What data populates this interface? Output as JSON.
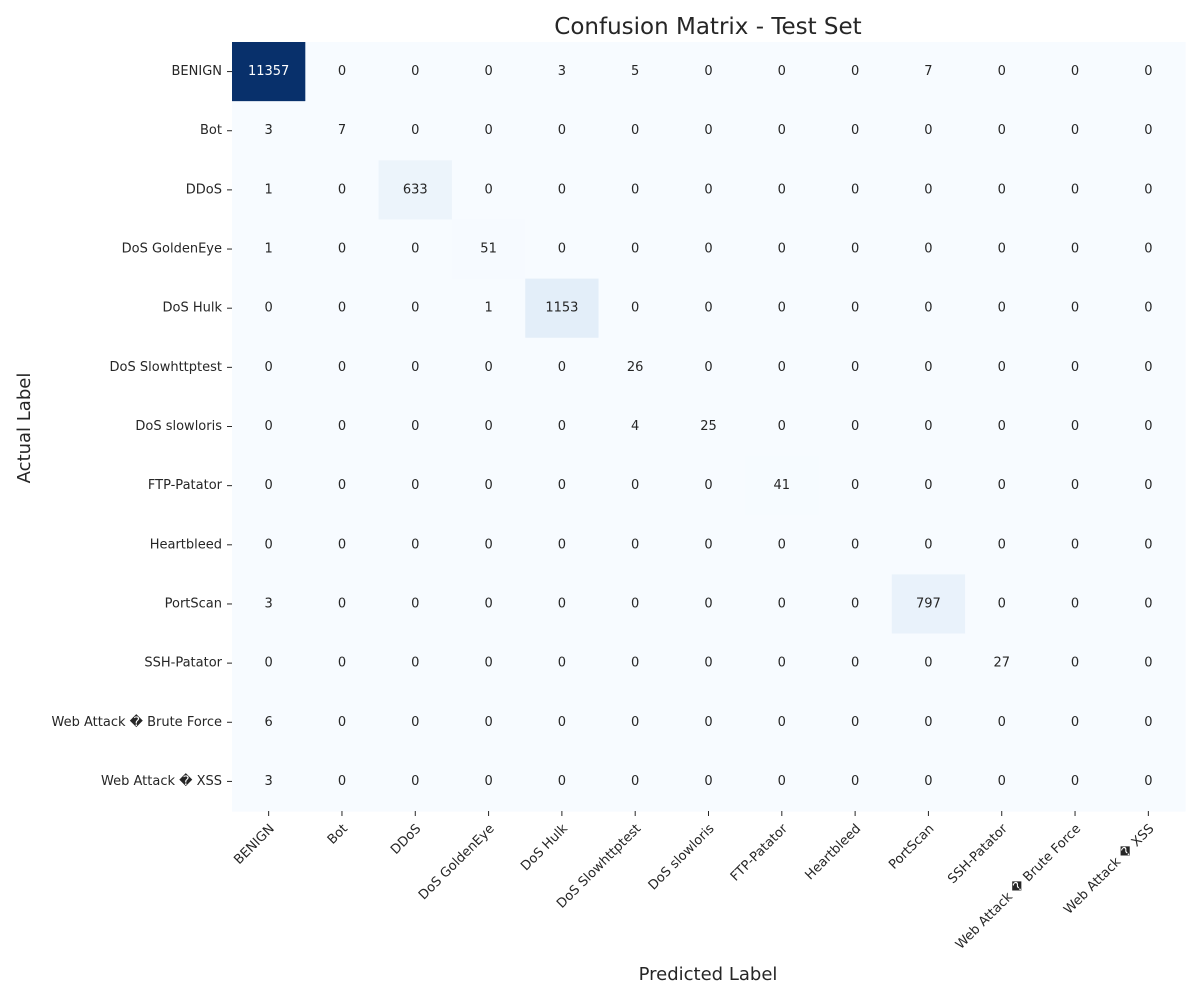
{
  "chart_data": {
    "type": "heatmap",
    "title": "Confusion Matrix - Test Set",
    "xlabel": "Predicted Label",
    "ylabel": "Actual Label",
    "colormap": "Blues",
    "colorbar": false,
    "grid": false,
    "low_color": "#f7fbff",
    "high_color": "#08306b",
    "text_dark": "#262626",
    "text_light": "#ffffff",
    "row_labels": [
      "BENIGN",
      "Bot",
      "DDoS",
      "DoS GoldenEye",
      "DoS Hulk",
      "DoS Slowhttptest",
      "DoS slowloris",
      "FTP-Patator",
      "Heartbleed",
      "PortScan",
      "SSH-Patator",
      "Web Attack � Brute Force",
      "Web Attack � XSS"
    ],
    "col_labels": [
      "BENIGN",
      "Bot",
      "DDoS",
      "DoS GoldenEye",
      "DoS Hulk",
      "DoS Slowhttptest",
      "DoS slowloris",
      "FTP-Patator",
      "Heartbleed",
      "PortScan",
      "SSH-Patator",
      "Web Attack � Brute Force",
      "Web Attack � XSS"
    ],
    "values": [
      [
        11357,
        0,
        0,
        0,
        3,
        5,
        0,
        0,
        0,
        7,
        0,
        0,
        0
      ],
      [
        3,
        7,
        0,
        0,
        0,
        0,
        0,
        0,
        0,
        0,
        0,
        0,
        0
      ],
      [
        1,
        0,
        633,
        0,
        0,
        0,
        0,
        0,
        0,
        0,
        0,
        0,
        0
      ],
      [
        1,
        0,
        0,
        51,
        0,
        0,
        0,
        0,
        0,
        0,
        0,
        0,
        0
      ],
      [
        0,
        0,
        0,
        1,
        1153,
        0,
        0,
        0,
        0,
        0,
        0,
        0,
        0
      ],
      [
        0,
        0,
        0,
        0,
        0,
        26,
        0,
        0,
        0,
        0,
        0,
        0,
        0
      ],
      [
        0,
        0,
        0,
        0,
        0,
        4,
        25,
        0,
        0,
        0,
        0,
        0,
        0
      ],
      [
        0,
        0,
        0,
        0,
        0,
        0,
        0,
        41,
        0,
        0,
        0,
        0,
        0
      ],
      [
        0,
        0,
        0,
        0,
        0,
        0,
        0,
        0,
        0,
        0,
        0,
        0,
        0
      ],
      [
        3,
        0,
        0,
        0,
        0,
        0,
        0,
        0,
        0,
        797,
        0,
        0,
        0
      ],
      [
        0,
        0,
        0,
        0,
        0,
        0,
        0,
        0,
        0,
        0,
        27,
        0,
        0
      ],
      [
        6,
        0,
        0,
        0,
        0,
        0,
        0,
        0,
        0,
        0,
        0,
        0,
        0
      ],
      [
        3,
        0,
        0,
        0,
        0,
        0,
        0,
        0,
        0,
        0,
        0,
        0,
        0
      ]
    ]
  }
}
